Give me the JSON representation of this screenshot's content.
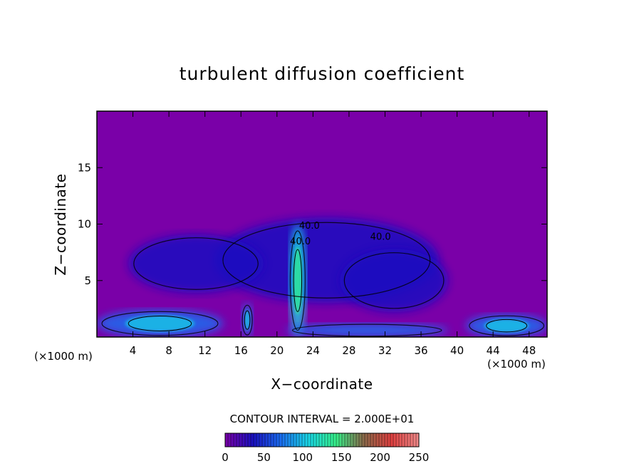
{
  "chart_data": {
    "type": "heatmap",
    "title": "turbulent diffusion coefficient",
    "xlabel": "X−coordinate",
    "ylabel": "Z−coordinate",
    "x_unit_left": "(×1000 m)",
    "x_unit_right": "(×1000 m)",
    "xlim": [
      0,
      50
    ],
    "ylim": [
      0,
      20
    ],
    "x_ticks": [
      4,
      8,
      12,
      16,
      20,
      24,
      28,
      32,
      36,
      40,
      44,
      48
    ],
    "y_ticks": [
      5,
      10,
      15
    ],
    "contour_interval_text": "CONTOUR INTERVAL = 2.000E+01",
    "contour_interval": 20.0,
    "contour_labels": [
      {
        "text": "40.0",
        "x": 31.5,
        "z": 8.6
      },
      {
        "text": "40.0",
        "x": 22.6,
        "z": 8.2
      },
      {
        "text": "40.0",
        "x": 23.6,
        "z": 9.6
      }
    ],
    "colorbar": {
      "min": 0,
      "max": 250,
      "ticks": [
        0,
        50,
        100,
        150,
        200,
        250
      ],
      "colors": [
        "#7a00a8",
        "#1a10c0",
        "#1a6cf0",
        "#19d6e6",
        "#36f08a",
        "#8a6a4a",
        "#e04040",
        "#f08a8a"
      ]
    },
    "background_color": "#7a00a8",
    "field_regions": [
      {
        "name": "upper-cloud-plume",
        "x": 25.5,
        "z": 6.8,
        "rx": 12.5,
        "rz": 3.8,
        "value": 20
      },
      {
        "name": "left-eddy",
        "x": 11,
        "z": 6.5,
        "rx": 7.5,
        "rz": 2.6,
        "value": 25
      },
      {
        "name": "right-eddy",
        "x": 33,
        "z": 5.0,
        "rx": 6.0,
        "rz": 2.8,
        "value": 30
      },
      {
        "name": "central-updraft",
        "x": 22.3,
        "z": 5.0,
        "rx": 0.9,
        "rz": 5.0,
        "value": 90
      },
      {
        "name": "secondary-updraft",
        "x": 16.7,
        "z": 1.5,
        "rx": 0.6,
        "rz": 1.5,
        "value": 80
      },
      {
        "name": "boundary-layer-left",
        "x": 7,
        "z": 1.2,
        "rx": 7,
        "rz": 1.2,
        "value": 70
      },
      {
        "name": "boundary-layer-right",
        "x": 45.5,
        "z": 1.0,
        "rx": 4.5,
        "rz": 1.0,
        "value": 65
      },
      {
        "name": "boundary-layer-mid",
        "x": 30,
        "z": 0.6,
        "rx": 9,
        "rz": 0.6,
        "value": 55
      }
    ]
  }
}
